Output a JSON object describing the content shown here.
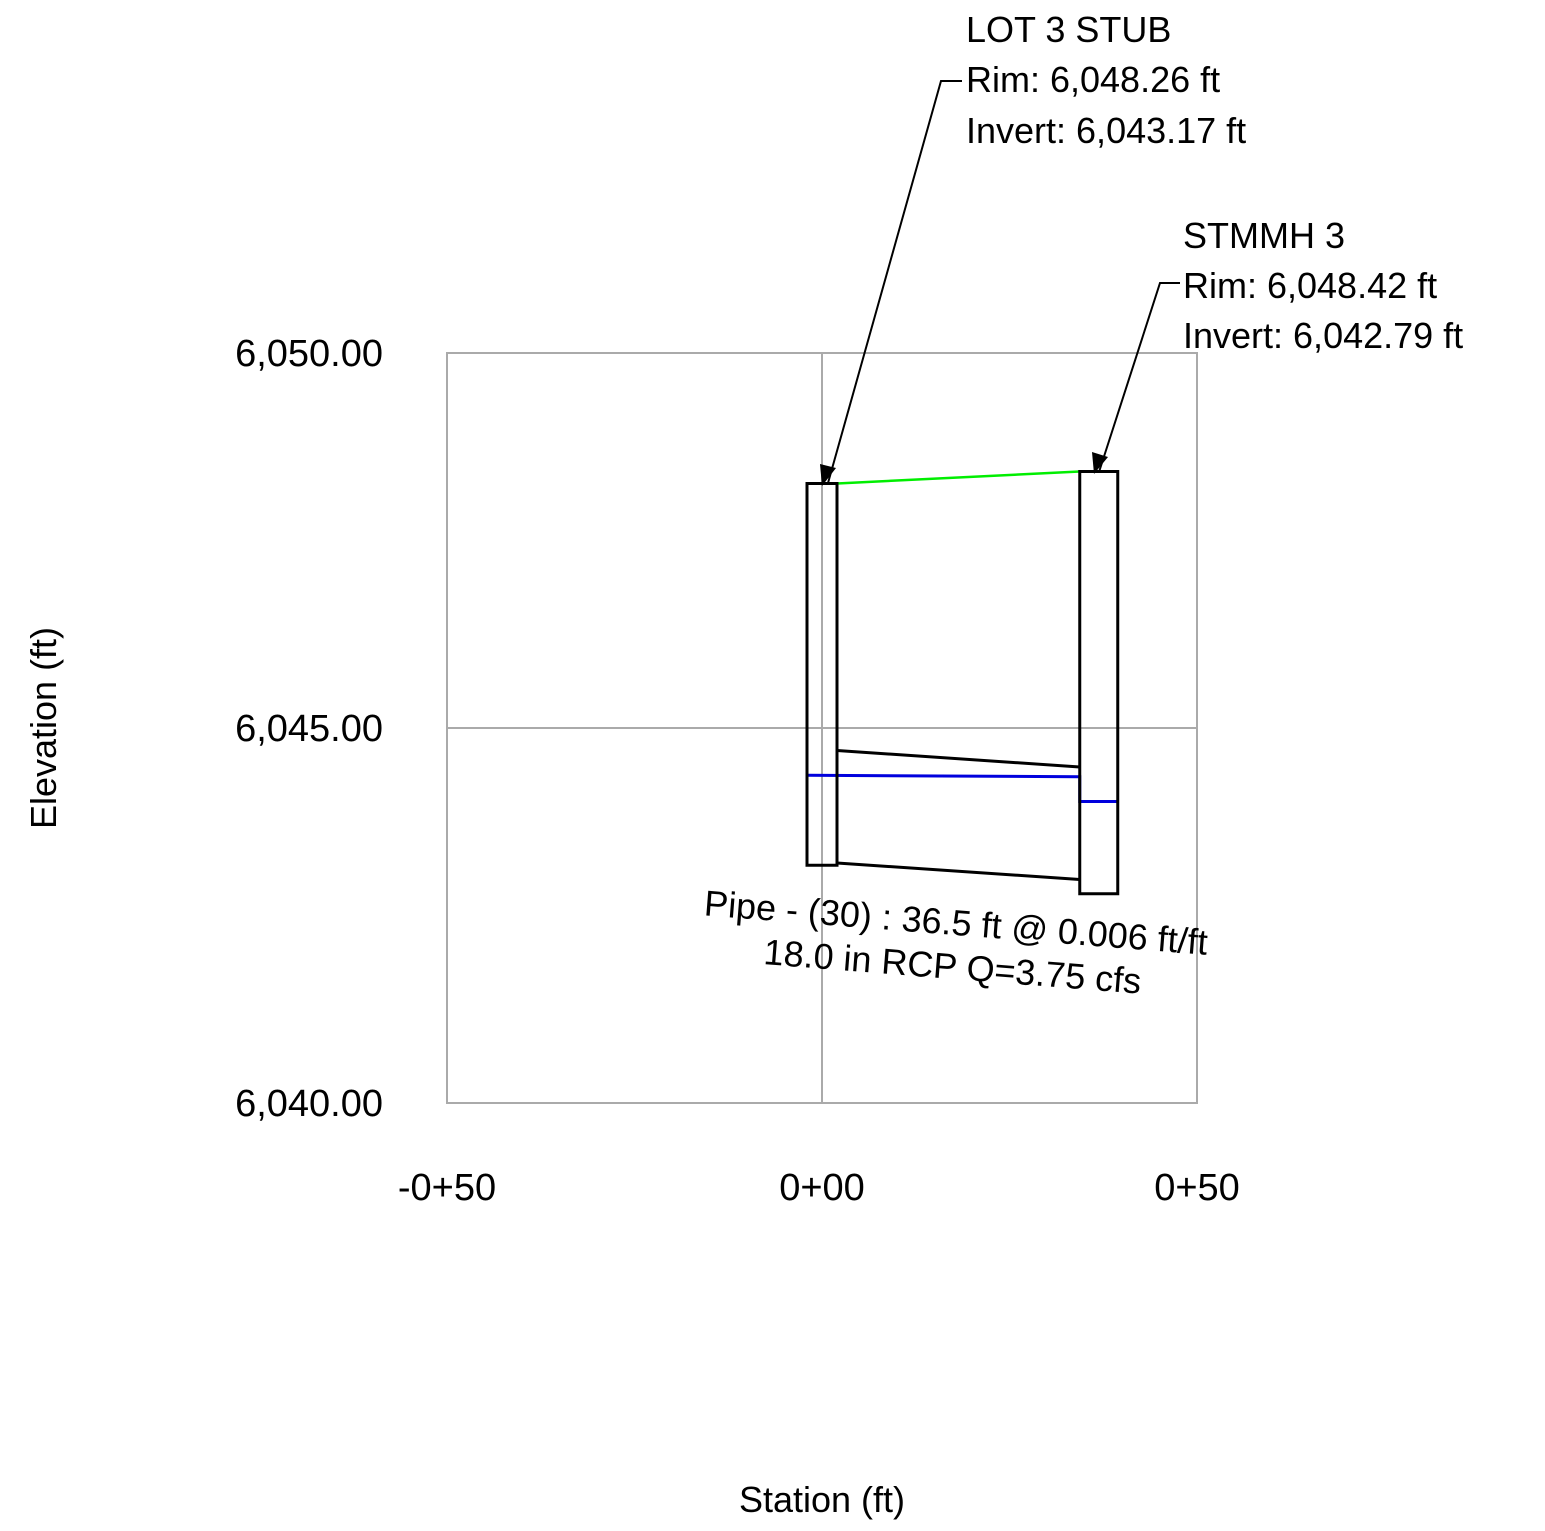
{
  "chart_data": {
    "type": "profile",
    "xlabel": "Station (ft)",
    "ylabel": "Elevation (ft)",
    "xlim": [
      -50,
      50
    ],
    "ylim": [
      6040,
      6050
    ],
    "x_ticks": [
      {
        "value": -50,
        "label": "-0+50"
      },
      {
        "value": 0,
        "label": "0+00"
      },
      {
        "value": 50,
        "label": "0+50"
      }
    ],
    "y_ticks": [
      {
        "value": 6050,
        "label": "6,050.00"
      },
      {
        "value": 6045,
        "label": "6,045.00"
      },
      {
        "value": 6040,
        "label": "6,040.00"
      }
    ],
    "grid": true,
    "structures": [
      {
        "name": "LOT 3 STUB",
        "rim_label": "Rim: 6,048.26 ft",
        "invert_label": "Invert: 6,043.17 ft",
        "station": 0,
        "rim": 6048.26,
        "invert": 6043.17,
        "hgl": 6044.37
      },
      {
        "name": "STMMH 3",
        "rim_label": "Rim: 6,048.42 ft",
        "invert_label": "Invert: 6,042.79 ft",
        "station": 36.5,
        "rim": 6048.42,
        "invert": 6042.79,
        "hgl": 6044.35,
        "hgl_in_structure": 6044.02
      }
    ],
    "pipe": {
      "label_line1": "Pipe - (30) : 36.5 ft @ 0.006 ft/ft",
      "label_line2": "18.0 in RCP Q=3.75 cfs",
      "length": 36.5,
      "slope": 0.006,
      "diameter_in": 18.0,
      "material": "RCP",
      "flow_cfs": 3.75,
      "start_invert": 6043.2,
      "end_invert": 6042.98,
      "start_crown": 6044.7,
      "end_crown": 6044.48
    },
    "colors": {
      "ground": "#00ee00",
      "hgl": "#0000dd",
      "structure": "#000000",
      "grid": "#aaaaaa"
    }
  }
}
